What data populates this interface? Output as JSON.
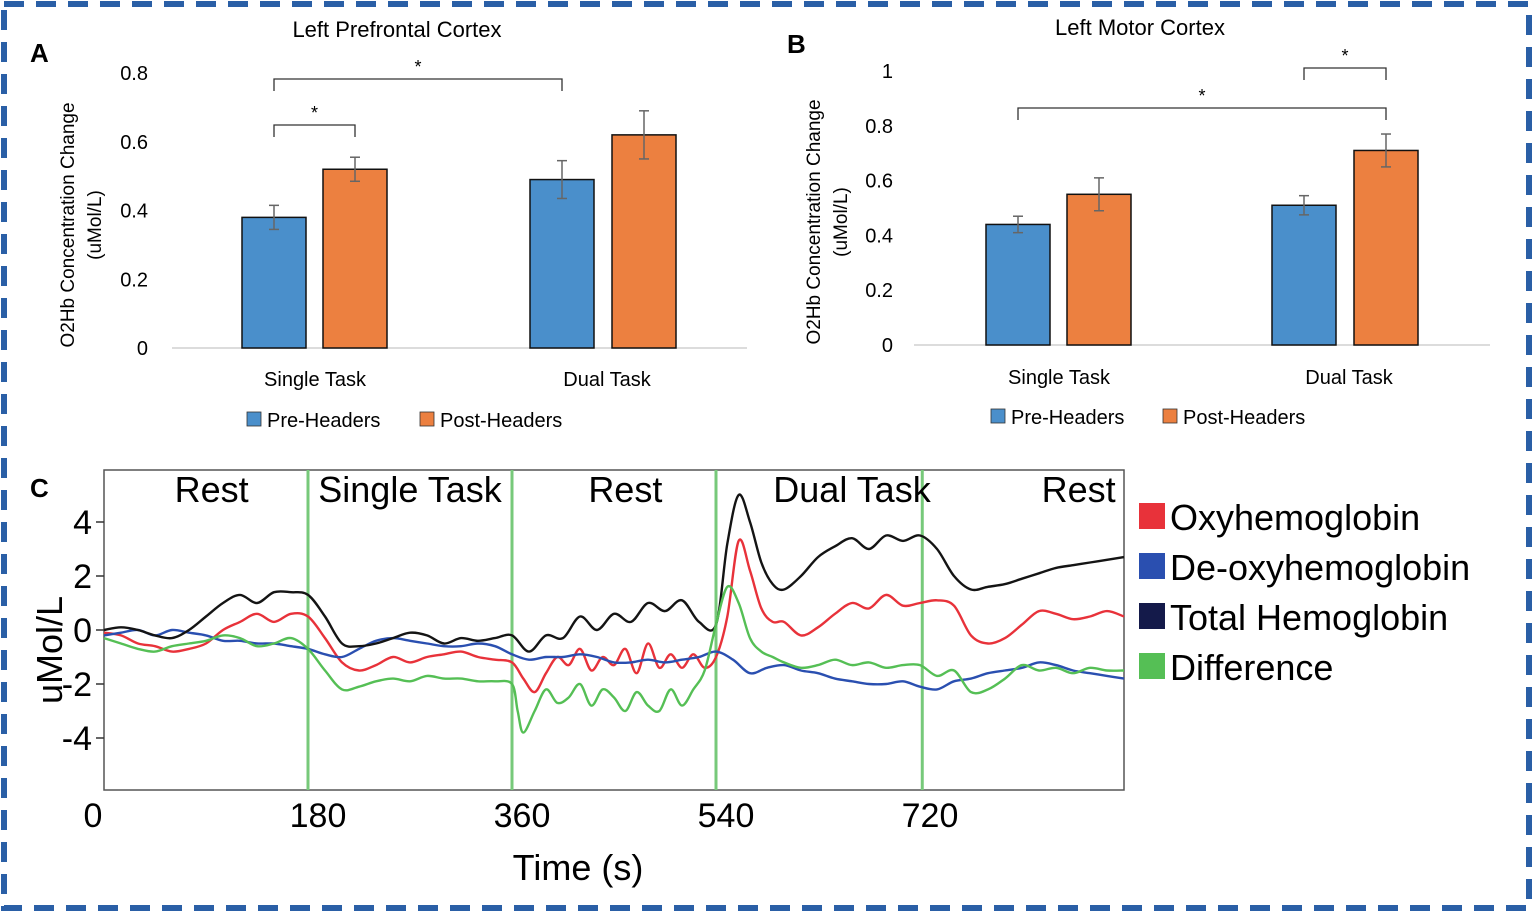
{
  "colors": {
    "pre": "#4a8fcb",
    "post": "#ec8040",
    "oxy": "#e8323a",
    "deoxy": "#2a4fb0",
    "total": "#141414",
    "diff": "#55bf55",
    "divider": "#77c97a",
    "border": "#2a5fa6"
  },
  "panel_labels": [
    "A",
    "B",
    "C"
  ],
  "chart_data": [
    {
      "type": "bar",
      "panel": "A",
      "title": "Left Prefrontal Cortex",
      "ylabel_line1": "O2Hb Concentration Change",
      "ylabel_line2": "(uMol/L)",
      "categories": [
        "Single Task",
        "Dual Task"
      ],
      "series": [
        {
          "name": "Pre-Headers",
          "values": [
            0.38,
            0.49
          ],
          "errors": [
            0.035,
            0.055
          ]
        },
        {
          "name": "Post-Headers",
          "values": [
            0.52,
            0.62
          ],
          "errors": [
            0.035,
            0.07
          ]
        }
      ],
      "ylim": [
        0,
        0.8
      ],
      "yticks": [
        "0",
        "0.2",
        "0.4",
        "0.6",
        "0.8"
      ],
      "significance": [
        {
          "label": "*",
          "from": [
            0,
            0
          ],
          "to": [
            0,
            1
          ]
        },
        {
          "label": "*",
          "from": [
            0,
            0
          ],
          "to": [
            1,
            0
          ]
        }
      ]
    },
    {
      "type": "bar",
      "panel": "B",
      "title": "Left Motor Cortex",
      "ylabel_line1": "O2Hb Concentration Change",
      "ylabel_line2": "(uMol/L)",
      "categories": [
        "Single Task",
        "Dual Task"
      ],
      "series": [
        {
          "name": "Pre-Headers",
          "values": [
            0.44,
            0.51
          ],
          "errors": [
            0.03,
            0.035
          ]
        },
        {
          "name": "Post-Headers",
          "values": [
            0.55,
            0.71
          ],
          "errors": [
            0.06,
            0.06
          ]
        }
      ],
      "ylim": [
        0,
        1
      ],
      "yticks": [
        "0",
        "0.2",
        "0.4",
        "0.6",
        "0.8",
        "1"
      ],
      "significance": [
        {
          "label": "*",
          "from": [
            1,
            0
          ],
          "to": [
            1,
            1
          ]
        },
        {
          "label": "*",
          "from": [
            0,
            0
          ],
          "to": [
            1,
            1
          ]
        }
      ]
    },
    {
      "type": "line",
      "panel": "C",
      "xlabel": "Time (s)",
      "ylabel": "uMol/L",
      "xlim": [
        0,
        900
      ],
      "ylim": [
        -6,
        5.5
      ],
      "xticks": [
        0,
        180,
        360,
        540,
        720
      ],
      "yticks": [
        4,
        2,
        0,
        -2,
        -4
      ],
      "phase_boundaries": [
        180,
        360,
        540,
        722
      ],
      "phases": [
        {
          "label": "Rest",
          "center": 95
        },
        {
          "label": "Single Task",
          "center": 270
        },
        {
          "label": "Rest",
          "center": 460
        },
        {
          "label": "Dual Task",
          "center": 660
        },
        {
          "label": "Rest",
          "center": 860
        }
      ],
      "series": [
        {
          "name": "Oxyhemoglobin",
          "key": "oxy",
          "x": [
            0,
            15,
            30,
            45,
            60,
            75,
            90,
            105,
            120,
            135,
            150,
            165,
            180,
            195,
            210,
            225,
            240,
            255,
            270,
            285,
            300,
            315,
            330,
            345,
            360,
            370,
            380,
            390,
            400,
            410,
            420,
            430,
            440,
            450,
            460,
            470,
            480,
            490,
            500,
            510,
            520,
            530,
            540,
            550,
            560,
            570,
            580,
            590,
            600,
            615,
            630,
            645,
            660,
            675,
            690,
            705,
            720,
            735,
            750,
            765,
            780,
            795,
            810,
            825,
            840,
            855,
            870,
            885,
            900
          ],
          "y": [
            -0.1,
            -0.2,
            -0.5,
            -0.6,
            -0.8,
            -0.7,
            -0.5,
            0,
            0.3,
            0.6,
            0.3,
            0.6,
            0.5,
            -0.3,
            -1.2,
            -1.5,
            -1.3,
            -1.0,
            -1.2,
            -1.0,
            -0.9,
            -0.8,
            -1.0,
            -1.1,
            -1.2,
            -1.8,
            -2.3,
            -1.6,
            -1.0,
            -1.3,
            -0.7,
            -1.5,
            -1.0,
            -1.3,
            -0.7,
            -1.6,
            -0.5,
            -1.4,
            -0.9,
            -1.4,
            -0.9,
            -1.4,
            -1.0,
            0.5,
            3.3,
            2.2,
            0.8,
            0.3,
            0.3,
            -0.2,
            0.1,
            0.6,
            1.0,
            0.8,
            1.3,
            0.9,
            1.0,
            1.1,
            0.9,
            -0.2,
            -0.5,
            -0.3,
            0.2,
            0.7,
            0.6,
            0.4,
            0.5,
            0.7,
            0.5
          ]
        },
        {
          "name": "De-oxyhemoglobin",
          "key": "deoxy",
          "x": [
            0,
            15,
            30,
            45,
            60,
            75,
            90,
            105,
            120,
            135,
            150,
            165,
            180,
            195,
            210,
            225,
            240,
            255,
            270,
            285,
            300,
            315,
            330,
            345,
            360,
            375,
            390,
            405,
            420,
            435,
            450,
            465,
            480,
            495,
            510,
            525,
            540,
            555,
            570,
            585,
            600,
            615,
            630,
            645,
            660,
            675,
            690,
            705,
            720,
            735,
            750,
            765,
            780,
            795,
            810,
            825,
            840,
            855,
            870,
            885,
            900
          ],
          "y": [
            -0.2,
            -0.1,
            0,
            -0.2,
            0,
            -0.1,
            -0.2,
            -0.4,
            -0.4,
            -0.5,
            -0.5,
            -0.6,
            -0.7,
            -0.9,
            -1.0,
            -0.7,
            -0.4,
            -0.3,
            -0.4,
            -0.5,
            -0.6,
            -0.6,
            -0.5,
            -0.6,
            -0.9,
            -1.1,
            -1.0,
            -1.0,
            -0.9,
            -1.0,
            -1.2,
            -1.2,
            -1.1,
            -1.2,
            -1.1,
            -1.0,
            -0.8,
            -1.1,
            -1.6,
            -1.4,
            -1.3,
            -1.5,
            -1.6,
            -1.8,
            -1.9,
            -2.0,
            -2.0,
            -1.9,
            -2.1,
            -2.2,
            -1.9,
            -1.8,
            -1.6,
            -1.5,
            -1.4,
            -1.2,
            -1.3,
            -1.5,
            -1.6,
            -1.7,
            -1.8
          ]
        },
        {
          "name": "Total Hemoglobin",
          "key": "total",
          "x": [
            0,
            15,
            30,
            45,
            60,
            75,
            90,
            105,
            120,
            135,
            150,
            165,
            180,
            195,
            210,
            225,
            240,
            255,
            270,
            285,
            300,
            315,
            330,
            345,
            360,
            375,
            390,
            405,
            420,
            435,
            450,
            465,
            480,
            495,
            510,
            525,
            540,
            550,
            560,
            570,
            580,
            590,
            600,
            615,
            630,
            645,
            660,
            675,
            690,
            705,
            720,
            735,
            750,
            765,
            780,
            795,
            810,
            825,
            840,
            855,
            870,
            885,
            900
          ],
          "y": [
            0,
            0.1,
            0,
            -0.2,
            -0.3,
            0,
            0.5,
            1.0,
            1.3,
            1.0,
            1.4,
            1.4,
            1.3,
            0.5,
            -0.5,
            -0.6,
            -0.5,
            -0.3,
            -0.1,
            -0.2,
            -0.5,
            -0.3,
            -0.4,
            -0.3,
            -0.2,
            -0.8,
            -0.2,
            -0.3,
            0.5,
            0,
            0.6,
            0.3,
            1.0,
            0.7,
            1.1,
            0.3,
            0.2,
            3.2,
            5.0,
            4.0,
            2.5,
            1.7,
            1.5,
            2.0,
            2.7,
            3.1,
            3.4,
            3.0,
            3.5,
            3.3,
            3.5,
            3.0,
            2.0,
            1.5,
            1.6,
            1.7,
            1.9,
            2.1,
            2.3,
            2.4,
            2.5,
            2.6,
            2.7
          ]
        },
        {
          "name": "Difference",
          "key": "diff",
          "x": [
            0,
            15,
            30,
            45,
            60,
            75,
            90,
            105,
            120,
            135,
            150,
            165,
            180,
            195,
            210,
            225,
            240,
            255,
            270,
            285,
            300,
            315,
            330,
            345,
            360,
            365,
            370,
            380,
            390,
            400,
            410,
            420,
            430,
            440,
            450,
            460,
            470,
            480,
            490,
            500,
            510,
            520,
            530,
            540,
            550,
            560,
            570,
            580,
            590,
            600,
            615,
            630,
            645,
            660,
            675,
            690,
            705,
            720,
            735,
            750,
            765,
            780,
            795,
            810,
            825,
            840,
            855,
            870,
            885,
            900
          ],
          "y": [
            -0.3,
            -0.5,
            -0.7,
            -0.8,
            -0.6,
            -0.5,
            -0.4,
            -0.2,
            -0.3,
            -0.6,
            -0.5,
            -0.3,
            -0.7,
            -1.5,
            -2.2,
            -2.1,
            -1.9,
            -1.8,
            -1.9,
            -1.7,
            -1.8,
            -1.8,
            -1.9,
            -1.9,
            -2.0,
            -3.0,
            -3.8,
            -3.0,
            -2.2,
            -2.7,
            -2.5,
            -2.0,
            -2.8,
            -2.2,
            -2.5,
            -3.0,
            -2.3,
            -2.8,
            -3.0,
            -2.2,
            -2.8,
            -2.2,
            -1.5,
            0.2,
            1.6,
            1.0,
            -0.3,
            -0.8,
            -1.0,
            -1.2,
            -1.4,
            -1.3,
            -1.1,
            -1.3,
            -1.2,
            -1.4,
            -1.3,
            -1.3,
            -1.7,
            -1.5,
            -2.3,
            -2.2,
            -1.8,
            -1.3,
            -1.5,
            -1.4,
            -1.6,
            -1.4,
            -1.5,
            -1.5
          ]
        }
      ]
    }
  ]
}
